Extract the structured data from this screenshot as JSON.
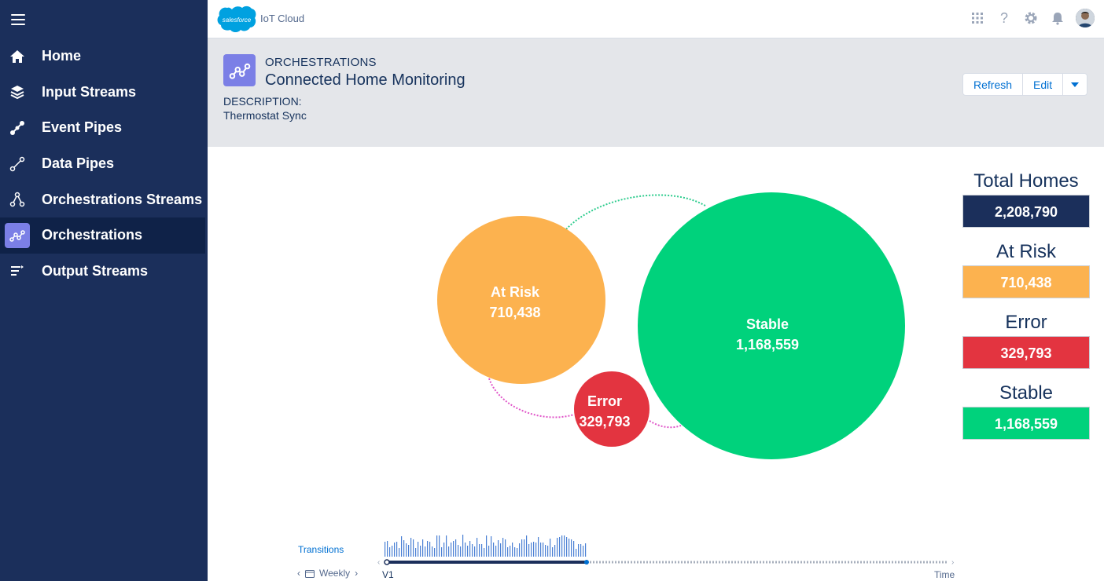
{
  "header": {
    "logo_text": "salesforce",
    "app_name": "IoT Cloud"
  },
  "sidebar": {
    "items": [
      {
        "label": "Home",
        "icon": "home-icon"
      },
      {
        "label": "Input Streams",
        "icon": "layers-icon"
      },
      {
        "label": "Event Pipes",
        "icon": "event-pipe-icon"
      },
      {
        "label": "Data Pipes",
        "icon": "data-pipe-icon"
      },
      {
        "label": "Orchestrations Streams",
        "icon": "network-icon"
      },
      {
        "label": "Orchestrations",
        "icon": "orchestration-icon",
        "active": true
      },
      {
        "label": "Output Streams",
        "icon": "output-stream-icon"
      }
    ]
  },
  "page": {
    "eyebrow": "ORCHESTRATIONS",
    "title": "Connected Home Monitoring",
    "description_label": "DESCRIPTION:",
    "description_value": "Thermostat Sync",
    "buttons": {
      "refresh": "Refresh",
      "edit": "Edit"
    }
  },
  "bubbles": {
    "at_risk": {
      "label": "At Risk",
      "value": "710,438",
      "color": "#fcb24f"
    },
    "stable": {
      "label": "Stable",
      "value": "1,168,559",
      "color": "#00d27c"
    },
    "error": {
      "label": "Error",
      "value": "329,793",
      "color": "#e33440"
    }
  },
  "stats": {
    "total": {
      "label": "Total Homes",
      "value": "2,208,790",
      "color": "#1b2f5b"
    },
    "at_risk": {
      "label": "At Risk",
      "value": "710,438",
      "color": "#fcb24f"
    },
    "error": {
      "label": "Error",
      "value": "329,793",
      "color": "#e33440"
    },
    "stable": {
      "label": "Stable",
      "value": "1,168,559",
      "color": "#00d27c"
    }
  },
  "timeline": {
    "transitions_label": "Transitions",
    "period": "Weekly",
    "start_label": "V1",
    "end_label": "Time"
  }
}
